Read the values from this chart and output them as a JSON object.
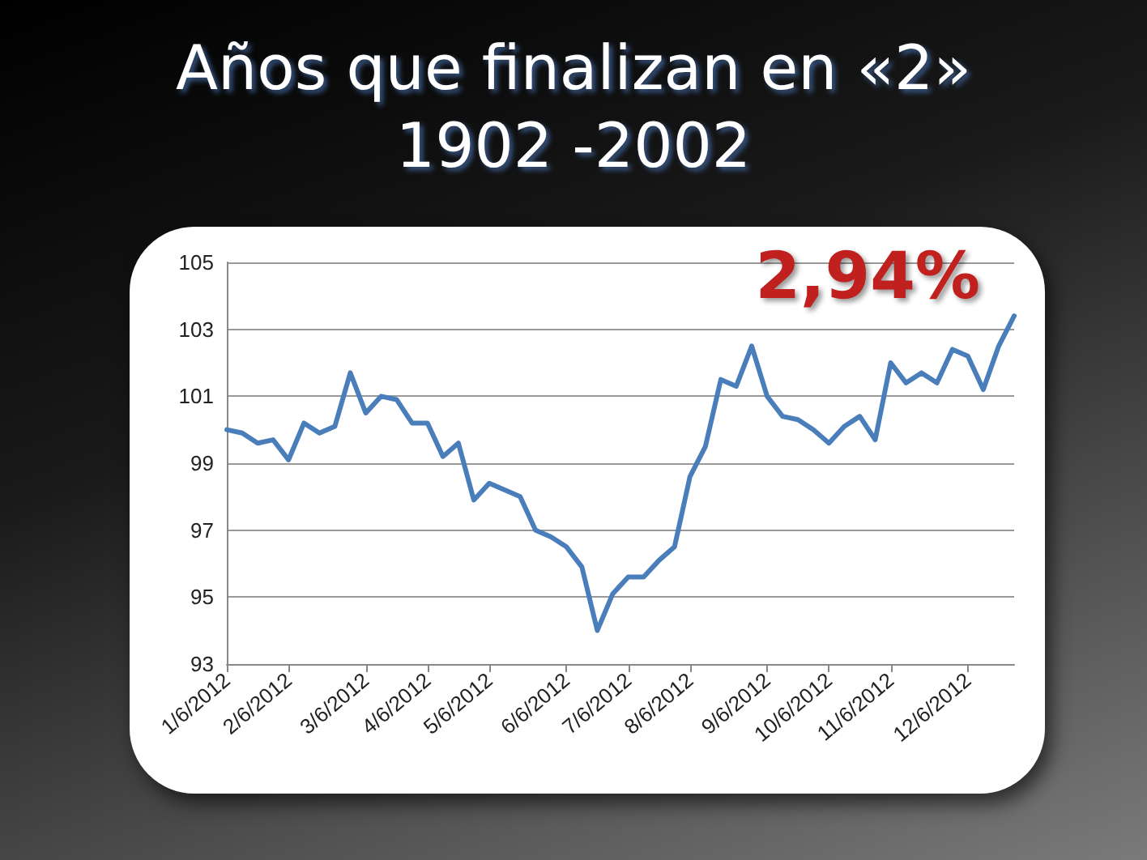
{
  "chart_data": {
    "type": "line",
    "title": "Años que finalizan en «2»\n1902 -2002",
    "annotations": [
      "2,94%"
    ],
    "categories": [
      "1/6/2012",
      null,
      null,
      null,
      "2/6/2012",
      null,
      null,
      null,
      null,
      "3/6/2012",
      null,
      null,
      null,
      "4/6/2012",
      null,
      null,
      null,
      "5/6/2012",
      null,
      null,
      null,
      null,
      "6/6/2012",
      null,
      null,
      null,
      "7/6/2012",
      null,
      null,
      null,
      "8/6/2012",
      null,
      null,
      null,
      null,
      "9/6/2012",
      null,
      null,
      null,
      "10/6/2012",
      null,
      null,
      null,
      "11/6/2012",
      null,
      null,
      null,
      null,
      "12/6/2012",
      null,
      null,
      null
    ],
    "series": [
      {
        "color": "#4a7ebb",
        "values": [
          100.0,
          99.9,
          99.6,
          99.7,
          99.1,
          100.2,
          99.9,
          100.1,
          101.7,
          100.5,
          101.0,
          100.9,
          100.2,
          100.2,
          99.2,
          99.6,
          97.9,
          98.4,
          98.2,
          98.0,
          97.0,
          96.8,
          96.5,
          95.9,
          94.0,
          95.1,
          95.6,
          95.6,
          96.1,
          96.5,
          98.6,
          99.5,
          101.5,
          101.3,
          102.5,
          101.0,
          100.4,
          100.3,
          100.0,
          99.6,
          100.1,
          100.4,
          99.7,
          102.0,
          101.4,
          101.7,
          101.4,
          102.4,
          102.2,
          101.2,
          102.5,
          103.4
        ]
      }
    ],
    "ylim": [
      93,
      105
    ],
    "yticks": [
      93,
      95,
      97,
      99,
      101,
      103,
      105
    ],
    "grid": "y",
    "marker": "none",
    "line_style": "solid"
  }
}
